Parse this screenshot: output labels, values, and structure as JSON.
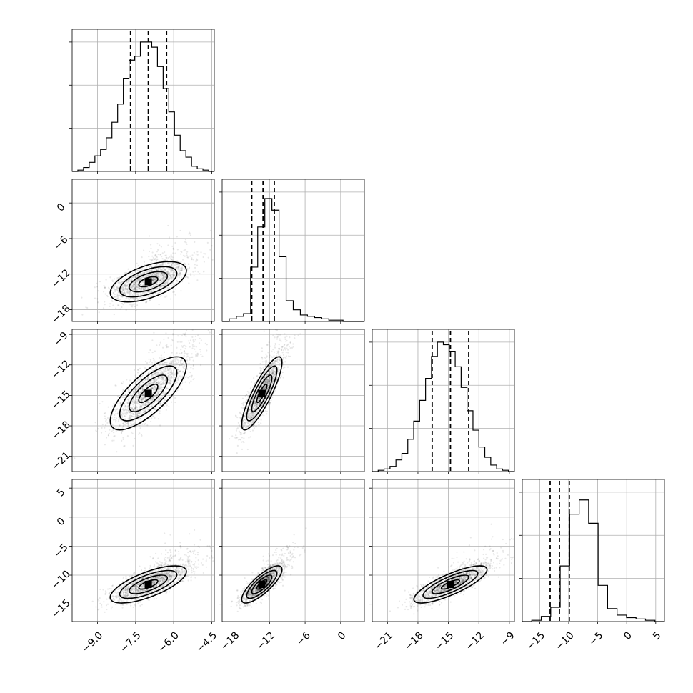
{
  "chart_data": {
    "type": "corner",
    "grid": true,
    "quantile_lines": "dashed",
    "colors": {
      "ink": "#000000",
      "grid": "#b0b0b0",
      "background": "#ffffff"
    },
    "params": [
      {
        "index": 0,
        "range": [
          -10.0,
          -4.4
        ],
        "ticks": [
          -9.0,
          -7.5,
          -6.0,
          -4.5
        ],
        "tick_labels": [
          "−9.0",
          "−7.5",
          "−6.0",
          "−4.5"
        ],
        "hist_y_max": 1.0,
        "hist_bins": [
          0.0,
          0.01,
          0.03,
          0.07,
          0.12,
          0.17,
          0.26,
          0.38,
          0.52,
          0.72,
          0.86,
          0.89,
          1.0,
          1.0,
          0.96,
          0.81,
          0.64,
          0.46,
          0.28,
          0.16,
          0.11,
          0.04,
          0.02,
          0.01,
          0.0
        ],
        "quantiles": [
          -7.7,
          -7.0,
          -6.28
        ],
        "stats": {
          "mean": -7.0,
          "sd": 0.75
        }
      },
      {
        "index": 1,
        "range": [
          -20.0,
          4.0
        ],
        "ticks": [
          -18,
          -12,
          -6,
          0
        ],
        "tick_labels": [
          "−18",
          "−12",
          "−6",
          "0"
        ],
        "hist_y_max": 1.0,
        "hist_bins": [
          0.0,
          0.02,
          0.04,
          0.06,
          0.42,
          0.73,
          0.95,
          0.86,
          0.5,
          0.16,
          0.09,
          0.05,
          0.04,
          0.03,
          0.02,
          0.01,
          0.01,
          0.0,
          0.0,
          0.0
        ],
        "quantiles": [
          -15.0,
          -13.1,
          -11.2
        ],
        "stats": {
          "mean": -13.3,
          "sd": 1.7
        }
      },
      {
        "index": 2,
        "range": [
          -22.5,
          -8.5
        ],
        "ticks": [
          -21,
          -18,
          -15,
          -12,
          -9
        ],
        "tick_labels": [
          "−21",
          "−18",
          "−15",
          "−12",
          "−9"
        ],
        "hist_y_max": 1.0,
        "hist_bins": [
          0.0,
          0.01,
          0.02,
          0.04,
          0.09,
          0.14,
          0.25,
          0.39,
          0.55,
          0.72,
          0.89,
          1.0,
          0.98,
          0.93,
          0.81,
          0.65,
          0.47,
          0.32,
          0.19,
          0.11,
          0.05,
          0.02,
          0.01,
          0.0
        ],
        "quantiles": [
          -16.6,
          -14.8,
          -13.0
        ],
        "stats": {
          "mean": -14.8,
          "sd": 1.8
        }
      },
      {
        "index": 3,
        "range": [
          -18.0,
          6.5
        ],
        "ticks": [
          -15,
          -10,
          -5,
          0,
          5
        ],
        "tick_labels": [
          "−15",
          "−10",
          "−5",
          "0",
          "5"
        ],
        "y_ticks": [
          -15,
          -10,
          -5,
          0,
          5
        ],
        "y_tick_labels": [
          "−15",
          "−10",
          "−5",
          "0",
          "5"
        ],
        "hist_y_max": 1.0,
        "hist_bins": [
          0.0,
          0.01,
          0.04,
          0.11,
          0.43,
          0.83,
          0.94,
          0.76,
          0.28,
          0.1,
          0.05,
          0.03,
          0.02,
          0.01,
          0.0
        ],
        "quantiles": [
          -13.2,
          -11.6,
          -9.9
        ],
        "stats": {
          "mean": -11.6,
          "sd": 1.6
        }
      }
    ],
    "correlations": [
      [
        1.0,
        0.55,
        0.75,
        0.7
      ],
      [
        0.55,
        1.0,
        0.85,
        0.8
      ],
      [
        0.75,
        0.85,
        1.0,
        0.8
      ],
      [
        0.7,
        0.8,
        0.8,
        1.0
      ]
    ]
  }
}
